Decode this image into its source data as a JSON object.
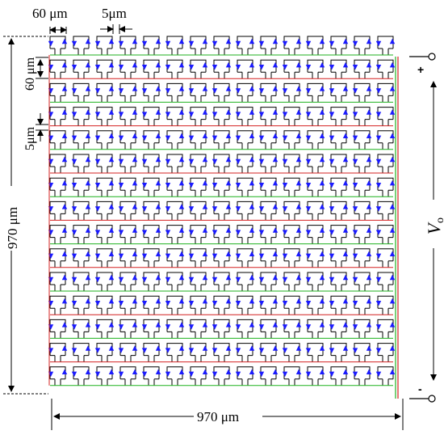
{
  "dimensions": {
    "cell_width_label": "60 μm",
    "gap_label": "5μm",
    "cell_height_label": "60 μm",
    "vertical_gap_label": "5μm",
    "total_height_label": "970 μm",
    "total_width_label": "970 μm"
  },
  "array": {
    "rows": 15,
    "columns": 15
  },
  "output": {
    "voltage_symbol": "V",
    "voltage_subscript": "o",
    "positive_terminal": "+",
    "negative_terminal": "-"
  },
  "colors": {
    "line": "#000000",
    "arrow": "#1a1aff",
    "bus_positive": "#1fb21f",
    "bus_negative": "#d42020"
  }
}
